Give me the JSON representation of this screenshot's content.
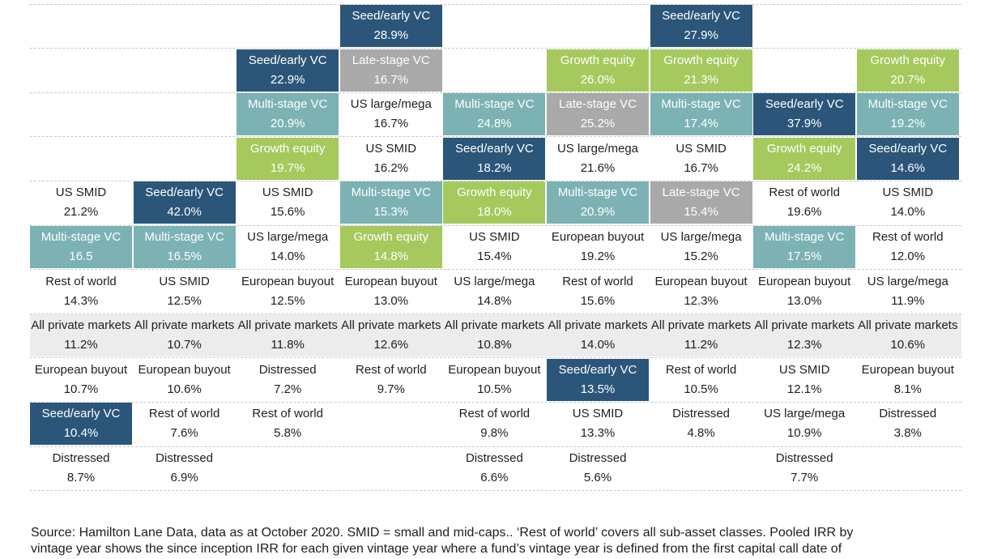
{
  "chart_data": {
    "type": "table",
    "row_count": 11,
    "band_row": 7,
    "colors": {
      "dark": "#2b5679",
      "teal": "#7cb2b4",
      "green": "#a5c95d",
      "grey": "#a9a9a9",
      "band": "#ececec"
    },
    "columns": [
      [
        {
          "row": 4,
          "name": "US SMID",
          "value": "21.2%"
        },
        {
          "row": 5,
          "name": "Multi-stage VC",
          "value": "16.5",
          "color": "teal"
        },
        {
          "row": 6,
          "name": "Rest of world",
          "value": "14.3%"
        },
        {
          "row": 7,
          "name": "All private markets",
          "value": "11.2%"
        },
        {
          "row": 8,
          "name": "European buyout",
          "value": "10.7%"
        },
        {
          "row": 9,
          "name": "Seed/early VC",
          "value": "10.4%",
          "color": "dark"
        },
        {
          "row": 10,
          "name": "Distressed",
          "value": "8.7%"
        }
      ],
      [
        {
          "row": 4,
          "name": "Seed/early VC",
          "value": "42.0%",
          "color": "dark"
        },
        {
          "row": 5,
          "name": "Multi-stage VC",
          "value": "16.5%",
          "color": "teal"
        },
        {
          "row": 6,
          "name": "US SMID",
          "value": "12.5%"
        },
        {
          "row": 7,
          "name": "All private markets",
          "value": "10.7%"
        },
        {
          "row": 8,
          "name": "European buyout",
          "value": "10.6%"
        },
        {
          "row": 9,
          "name": "Rest of world",
          "value": "7.6%"
        },
        {
          "row": 10,
          "name": "Distressed",
          "value": "6.9%"
        }
      ],
      [
        {
          "row": 1,
          "name": "Seed/early VC",
          "value": "22.9%",
          "color": "dark"
        },
        {
          "row": 2,
          "name": "Multi-stage VC",
          "value": "20.9%",
          "color": "teal"
        },
        {
          "row": 3,
          "name": "Growth equity",
          "value": "19.7%",
          "color": "green"
        },
        {
          "row": 4,
          "name": "US SMID",
          "value": "15.6%"
        },
        {
          "row": 5,
          "name": "US large/mega",
          "value": "14.0%"
        },
        {
          "row": 6,
          "name": "European buyout",
          "value": "12.5%"
        },
        {
          "row": 7,
          "name": "All private markets",
          "value": "11.8%"
        },
        {
          "row": 8,
          "name": "Distressed",
          "value": "7.2%"
        },
        {
          "row": 9,
          "name": "Rest of world",
          "value": "5.8%"
        }
      ],
      [
        {
          "row": 0,
          "name": "Seed/early VC",
          "value": "28.9%",
          "color": "dark"
        },
        {
          "row": 1,
          "name": "Late-stage VC",
          "value": "16.7%",
          "color": "grey"
        },
        {
          "row": 2,
          "name": "US large/mega",
          "value": "16.7%"
        },
        {
          "row": 3,
          "name": "US SMID",
          "value": "16.2%"
        },
        {
          "row": 4,
          "name": "Multi-stage VC",
          "value": "15.3%",
          "color": "teal"
        },
        {
          "row": 5,
          "name": "Growth equity",
          "value": "14.8%",
          "color": "green"
        },
        {
          "row": 6,
          "name": "European buyout",
          "value": "13.0%"
        },
        {
          "row": 7,
          "name": "All private markets",
          "value": "12.6%"
        },
        {
          "row": 8,
          "name": "Rest of world",
          "value": "9.7%"
        }
      ],
      [
        {
          "row": 2,
          "name": "Multi-stage VC",
          "value": "24.8%",
          "color": "teal"
        },
        {
          "row": 3,
          "name": "Seed/early VC",
          "value": "18.2%",
          "color": "dark"
        },
        {
          "row": 4,
          "name": "Growth equity",
          "value": "18.0%",
          "color": "green"
        },
        {
          "row": 5,
          "name": "US SMID",
          "value": "15.4%"
        },
        {
          "row": 6,
          "name": "US large/mega",
          "value": "14.8%"
        },
        {
          "row": 7,
          "name": "All private markets",
          "value": "10.8%"
        },
        {
          "row": 8,
          "name": "European buyout",
          "value": "10.5%"
        },
        {
          "row": 9,
          "name": "Rest of world",
          "value": "9.8%"
        },
        {
          "row": 10,
          "name": "Distressed",
          "value": "6.6%"
        }
      ],
      [
        {
          "row": 1,
          "name": "Growth equity",
          "value": "26.0%",
          "color": "green"
        },
        {
          "row": 2,
          "name": "Late-stage VC",
          "value": "25.2%",
          "color": "grey"
        },
        {
          "row": 3,
          "name": "US large/mega",
          "value": "21.6%"
        },
        {
          "row": 4,
          "name": "Multi-stage VC",
          "value": "20.9%",
          "color": "teal"
        },
        {
          "row": 5,
          "name": "European buyout",
          "value": "19.2%"
        },
        {
          "row": 6,
          "name": "Rest of world",
          "value": "15.6%"
        },
        {
          "row": 7,
          "name": "All private markets",
          "value": "14.0%"
        },
        {
          "row": 8,
          "name": "Seed/early VC",
          "value": "13.5%",
          "color": "dark"
        },
        {
          "row": 9,
          "name": "US SMID",
          "value": "13.3%"
        },
        {
          "row": 10,
          "name": "Distressed",
          "value": "5.6%"
        }
      ],
      [
        {
          "row": 0,
          "name": "Seed/early VC",
          "value": "27.9%",
          "color": "dark"
        },
        {
          "row": 1,
          "name": "Growth equity",
          "value": "21.3%",
          "color": "green"
        },
        {
          "row": 2,
          "name": "Multi-stage VC",
          "value": "17.4%",
          "color": "teal"
        },
        {
          "row": 3,
          "name": "US SMID",
          "value": "16.7%"
        },
        {
          "row": 4,
          "name": "Late-stage VC",
          "value": "15.4%",
          "color": "grey"
        },
        {
          "row": 5,
          "name": "US large/mega",
          "value": "15.2%"
        },
        {
          "row": 6,
          "name": "European buyout",
          "value": "12.3%"
        },
        {
          "row": 7,
          "name": "All private markets",
          "value": "11.2%"
        },
        {
          "row": 8,
          "name": "Rest of world",
          "value": "10.5%"
        },
        {
          "row": 9,
          "name": "Distressed",
          "value": "4.8%"
        }
      ],
      [
        {
          "row": 2,
          "name": "Seed/early VC",
          "value": "37.9%",
          "color": "dark"
        },
        {
          "row": 3,
          "name": "Growth equity",
          "value": "24.2%",
          "color": "green"
        },
        {
          "row": 4,
          "name": "Rest of world",
          "value": "19.6%"
        },
        {
          "row": 5,
          "name": "Multi-stage VC",
          "value": "17.5%",
          "color": "teal"
        },
        {
          "row": 6,
          "name": "European buyout",
          "value": "13.0%"
        },
        {
          "row": 7,
          "name": "All private markets",
          "value": "12.3%"
        },
        {
          "row": 8,
          "name": "US SMID",
          "value": "12.1%"
        },
        {
          "row": 9,
          "name": "US large/mega",
          "value": "10.9%"
        },
        {
          "row": 10,
          "name": "Distressed",
          "value": "7.7%"
        }
      ],
      [
        {
          "row": 1,
          "name": "Growth equity",
          "value": "20.7%",
          "color": "green"
        },
        {
          "row": 2,
          "name": "Multi-stage VC",
          "value": "19.2%",
          "color": "teal"
        },
        {
          "row": 3,
          "name": "Seed/early VC",
          "value": "14.6%",
          "color": "dark"
        },
        {
          "row": 4,
          "name": "US SMID",
          "value": "14.0%"
        },
        {
          "row": 5,
          "name": "Rest of world",
          "value": "12.0%"
        },
        {
          "row": 6,
          "name": "US large/mega",
          "value": "11.9%"
        },
        {
          "row": 7,
          "name": "All private markets",
          "value": "10.6%"
        },
        {
          "row": 8,
          "name": "European buyout",
          "value": "8.1%"
        },
        {
          "row": 9,
          "name": "Distressed",
          "value": "3.8%"
        }
      ]
    ]
  },
  "footnote": {
    "line1": "Source: Hamilton Lane Data, data as at October 2020. SMID = small and mid-caps.. ‘Rest of world’ covers all sub-asset classes. Pooled IRR by",
    "line2": "vintage year shows the since inception IRR for each given vintage year where a fund’s vintage year is defined from the first capital call date of"
  }
}
